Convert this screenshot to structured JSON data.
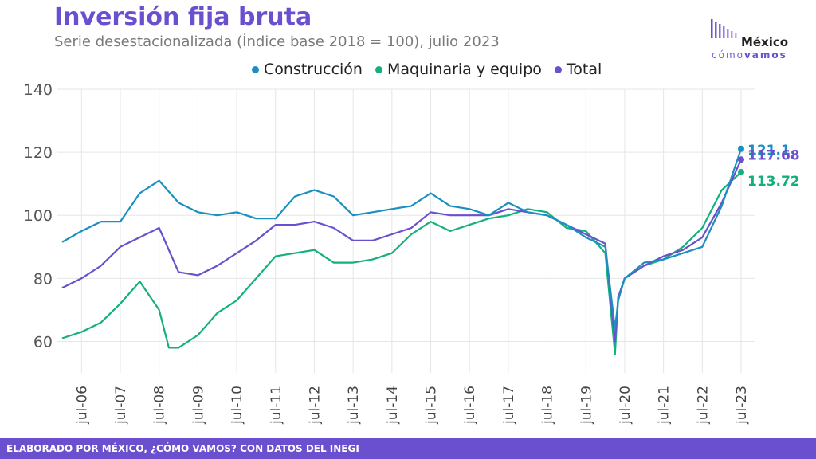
{
  "header": {
    "title": "Inversión fija bruta",
    "subtitle": "Serie desestacionalizada (Índice base 2018 = 100), julio 2023"
  },
  "logo": {
    "main": "México",
    "sub_a": "cómo",
    "sub_b": "vamos"
  },
  "footer": {
    "text": "ELABORADO POR MÉXICO, ¿CÓMO VAMOS? CON DATOS DEL INEGI"
  },
  "colors": {
    "construccion": "#1a8fc0",
    "maquinaria": "#13b07e",
    "total": "#6a4fcf",
    "accent": "#6a4fcf",
    "grid": "#e6e6e6"
  },
  "chart_data": {
    "type": "line",
    "title": "Inversión fija bruta",
    "subtitle": "Serie desestacionalizada (Índice base 2018 = 100), julio 2023",
    "ylim": [
      50,
      140
    ],
    "yticks": [
      60,
      80,
      100,
      120,
      140
    ],
    "xlim": [
      "2006-01",
      "2023-07"
    ],
    "xticks": [
      "jul-06",
      "jul-07",
      "jul-08",
      "jul-09",
      "jul-10",
      "jul-11",
      "jul-12",
      "jul-13",
      "jul-14",
      "jul-15",
      "jul-16",
      "jul-17",
      "jul-18",
      "jul-19",
      "jul-20",
      "jul-21",
      "jul-22",
      "jul-23"
    ],
    "grid": true,
    "legend_position": "top",
    "series": [
      {
        "name": "Construcción",
        "color": "#1a8fc0",
        "end_label": "121.1",
        "x": [
          "2006-01",
          "2006-07",
          "2007-01",
          "2007-07",
          "2008-01",
          "2008-07",
          "2009-01",
          "2009-07",
          "2010-01",
          "2010-07",
          "2011-01",
          "2011-07",
          "2012-01",
          "2012-07",
          "2013-01",
          "2013-07",
          "2014-01",
          "2014-07",
          "2015-01",
          "2015-07",
          "2016-01",
          "2016-07",
          "2017-01",
          "2017-07",
          "2018-01",
          "2018-07",
          "2019-01",
          "2019-07",
          "2020-01",
          "2020-04",
          "2020-05",
          "2020-07",
          "2021-01",
          "2021-07",
          "2022-01",
          "2022-07",
          "2023-01",
          "2023-07"
        ],
        "y": [
          91.5,
          95,
          98,
          98,
          107,
          111,
          104,
          101,
          100,
          101,
          99,
          99,
          106,
          108,
          106,
          100,
          101,
          102,
          103,
          107,
          103,
          102,
          100,
          104,
          101,
          100,
          97,
          93,
          90,
          64,
          73,
          80,
          85,
          86,
          88,
          90,
          103,
          121.1
        ]
      },
      {
        "name": "Maquinaria y equipo",
        "color": "#13b07e",
        "end_label": "113.72",
        "x": [
          "2006-01",
          "2006-07",
          "2007-01",
          "2007-07",
          "2008-01",
          "2008-07",
          "2008-10",
          "2009-01",
          "2009-07",
          "2010-01",
          "2010-07",
          "2011-01",
          "2011-07",
          "2012-01",
          "2012-07",
          "2013-01",
          "2013-07",
          "2014-01",
          "2014-07",
          "2015-01",
          "2015-07",
          "2016-01",
          "2016-07",
          "2017-01",
          "2017-07",
          "2018-01",
          "2018-07",
          "2019-01",
          "2019-07",
          "2020-01",
          "2020-04",
          "2020-05",
          "2020-07",
          "2021-01",
          "2021-07",
          "2022-01",
          "2022-07",
          "2023-01",
          "2023-07"
        ],
        "y": [
          61,
          63,
          66,
          72,
          79,
          70,
          58,
          58,
          62,
          69,
          73,
          80,
          87,
          88,
          89,
          85,
          85,
          86,
          88,
          94,
          98,
          95,
          97,
          99,
          100,
          102,
          101,
          96,
          95,
          88,
          56,
          74,
          80,
          84,
          86,
          90,
          96,
          108,
          113.72
        ]
      },
      {
        "name": "Total",
        "color": "#6a4fcf",
        "end_label": "117.68",
        "x": [
          "2006-01",
          "2006-07",
          "2007-01",
          "2007-07",
          "2008-01",
          "2008-07",
          "2009-01",
          "2009-07",
          "2010-01",
          "2010-07",
          "2011-01",
          "2011-07",
          "2012-01",
          "2012-07",
          "2013-01",
          "2013-07",
          "2014-01",
          "2014-07",
          "2015-01",
          "2015-07",
          "2016-01",
          "2016-07",
          "2017-01",
          "2017-07",
          "2018-01",
          "2018-07",
          "2019-01",
          "2019-07",
          "2020-01",
          "2020-04",
          "2020-05",
          "2020-07",
          "2021-01",
          "2021-07",
          "2022-01",
          "2022-07",
          "2023-01",
          "2023-07"
        ],
        "y": [
          77,
          80,
          84,
          90,
          93,
          96,
          82,
          81,
          84,
          88,
          92,
          97,
          97,
          98,
          96,
          92,
          92,
          94,
          96,
          101,
          100,
          100,
          100,
          102,
          101,
          100,
          97,
          94,
          91,
          60,
          74,
          80,
          84,
          87,
          89,
          93,
          104,
          117.68
        ]
      }
    ]
  }
}
